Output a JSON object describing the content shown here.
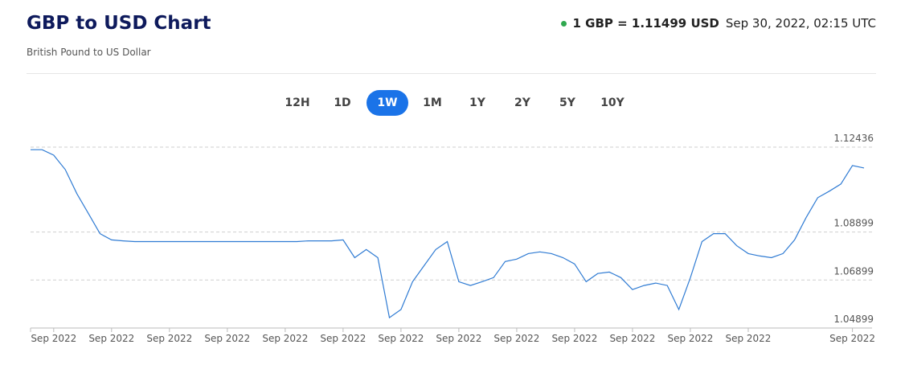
{
  "header": {
    "title": "GBP to USD Chart",
    "subtitle": "British Pound to US Dollar",
    "rate": "1 GBP = 1.11499 USD",
    "timestamp": "Sep 30, 2022, 02:15 UTC"
  },
  "ranges": [
    "12H",
    "1D",
    "1W",
    "1M",
    "1Y",
    "2Y",
    "5Y",
    "10Y"
  ],
  "selected_range": 2,
  "chart_data": {
    "type": "line",
    "color": "#2f7bd3",
    "categories": [
      null,
      null,
      "Sep 2022",
      null,
      null,
      null,
      null,
      "Sep 2022",
      null,
      null,
      null,
      null,
      "Sep 2022",
      null,
      null,
      null,
      null,
      "Sep 2022",
      null,
      null,
      null,
      null,
      "Sep 2022",
      null,
      null,
      null,
      null,
      "Sep 2022",
      null,
      null,
      null,
      null,
      "Sep 2022",
      null,
      null,
      null,
      null,
      "Sep 2022",
      null,
      null,
      null,
      null,
      "Sep 2022",
      null,
      null,
      null,
      null,
      "Sep 2022",
      null,
      null,
      null,
      null,
      "Sep 2022",
      null,
      null,
      null,
      null,
      "Sep 2022",
      null,
      null,
      null,
      null,
      "Sep 2022",
      null,
      null,
      null,
      null,
      null,
      null,
      null,
      null,
      "Sep 2022",
      null
    ],
    "values": [
      1.1233,
      1.1233,
      1.121,
      1.115,
      1.105,
      1.0967,
      1.0883,
      1.0857,
      1.0853,
      1.085,
      1.085,
      1.085,
      1.085,
      1.085,
      1.085,
      1.085,
      1.085,
      1.085,
      1.085,
      1.085,
      1.085,
      1.085,
      1.085,
      1.085,
      1.0853,
      1.0853,
      1.0853,
      1.0857,
      1.0783,
      1.0817,
      1.0783,
      1.0533,
      1.0567,
      1.0683,
      1.075,
      1.0817,
      1.085,
      1.0683,
      1.0667,
      1.0683,
      1.07,
      1.0767,
      1.0777,
      1.08,
      1.0807,
      1.08,
      1.0783,
      1.0757,
      1.0683,
      1.0717,
      1.0723,
      1.07,
      1.065,
      1.0667,
      1.0677,
      1.0667,
      1.0567,
      1.07,
      1.085,
      1.0883,
      1.0883,
      1.0833,
      1.08,
      1.079,
      1.0783,
      1.08,
      1.0857,
      1.095,
      1.1033,
      1.106,
      1.109,
      1.1167,
      1.1157
    ],
    "ylim": [
      1.04899,
      1.12436
    ],
    "yticks": [
      1.04899,
      1.06899,
      1.08899,
      1.12436
    ],
    "grid": true
  }
}
